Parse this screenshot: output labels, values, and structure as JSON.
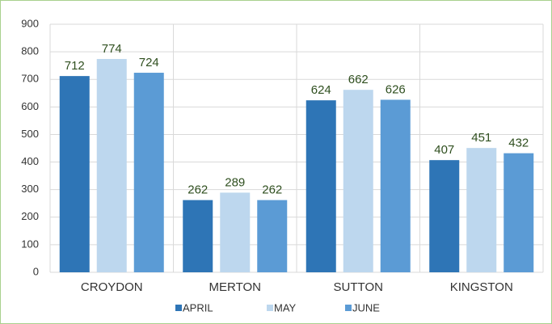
{
  "chart_data": {
    "type": "bar",
    "categories": [
      "CROYDON",
      "MERTON",
      "SUTTON",
      "KINGSTON"
    ],
    "series": [
      {
        "name": "APRIL",
        "color": "#2e75b6",
        "values": [
          712,
          262,
          624,
          407
        ]
      },
      {
        "name": "MAY",
        "color": "#bdd7ee",
        "values": [
          774,
          289,
          662,
          451
        ]
      },
      {
        "name": "JUNE",
        "color": "#5b9bd5",
        "values": [
          724,
          262,
          626,
          432
        ]
      }
    ],
    "ylim": [
      0,
      900
    ],
    "yticks": [
      0,
      100,
      200,
      300,
      400,
      500,
      600,
      700,
      800,
      900
    ],
    "grid": true,
    "legend": "bottom"
  }
}
